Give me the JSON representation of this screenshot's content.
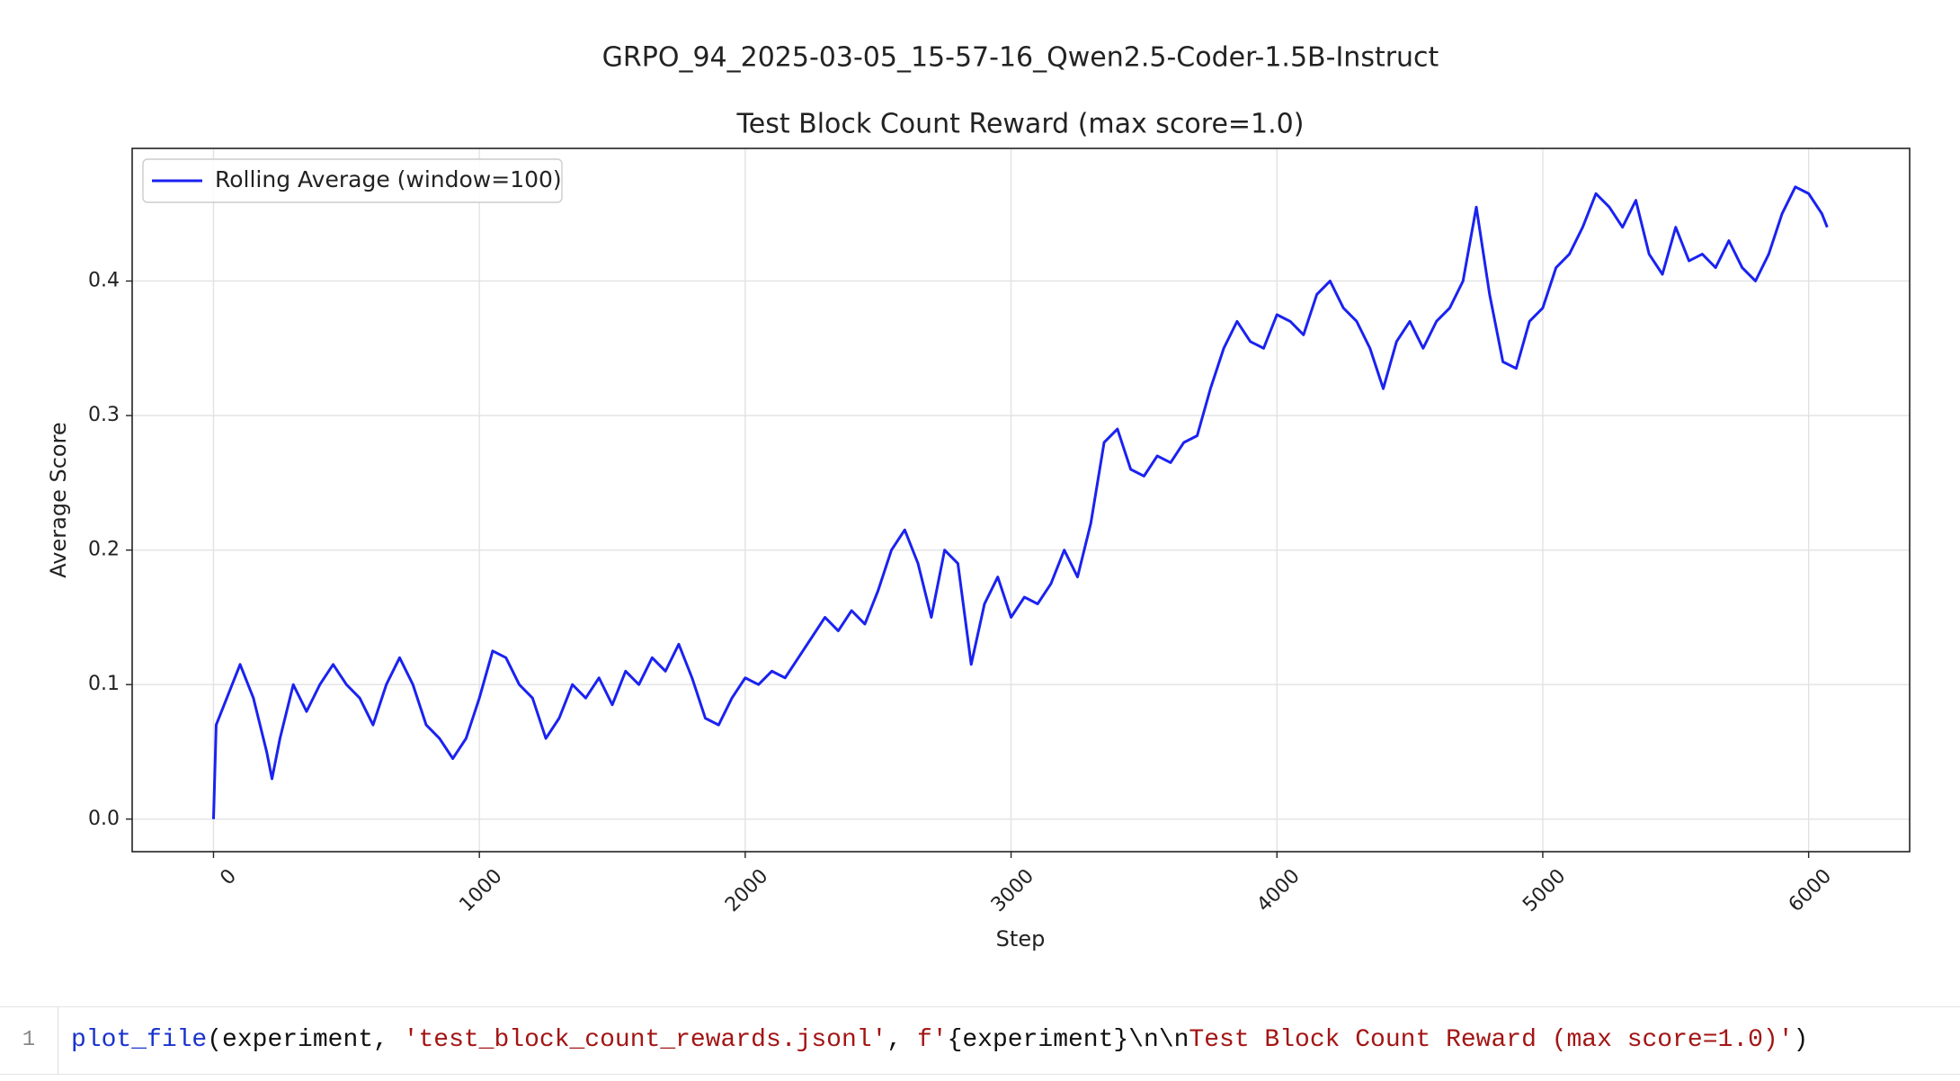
{
  "chart_data": {
    "type": "line",
    "title": "GRPO_94_2025-03-05_15-57-16_Qwen2.5-Coder-1.5B-Instruct",
    "subtitle": "Test Block Count Reward (max score=1.0)",
    "x_label": "Step",
    "y_label": "Average Score",
    "x": [
      0,
      10,
      50,
      100,
      150,
      200,
      220,
      250,
      300,
      350,
      400,
      450,
      500,
      550,
      600,
      650,
      700,
      750,
      800,
      850,
      900,
      950,
      1000,
      1050,
      1100,
      1150,
      1200,
      1250,
      1300,
      1350,
      1400,
      1450,
      1500,
      1550,
      1600,
      1650,
      1700,
      1750,
      1800,
      1850,
      1900,
      1950,
      2000,
      2050,
      2100,
      2150,
      2200,
      2250,
      2300,
      2350,
      2400,
      2450,
      2500,
      2550,
      2600,
      2650,
      2700,
      2750,
      2800,
      2850,
      2900,
      2950,
      3000,
      3050,
      3100,
      3150,
      3200,
      3250,
      3300,
      3350,
      3400,
      3450,
      3500,
      3550,
      3600,
      3650,
      3700,
      3750,
      3800,
      3850,
      3900,
      3950,
      4000,
      4050,
      4100,
      4150,
      4200,
      4250,
      4300,
      4350,
      4400,
      4450,
      4500,
      4550,
      4600,
      4650,
      4700,
      4750,
      4800,
      4850,
      4900,
      4950,
      5000,
      5050,
      5100,
      5150,
      5200,
      5250,
      5300,
      5350,
      5400,
      5450,
      5500,
      5550,
      5600,
      5650,
      5700,
      5750,
      5800,
      5850,
      5900,
      5950,
      6000,
      6050,
      6070
    ],
    "series": [
      {
        "name": "Rolling Average (window=100)",
        "color": "#1a22f0",
        "values": [
          0,
          0.07,
          0.09,
          0.115,
          0.09,
          0.05,
          0.03,
          0.06,
          0.1,
          0.08,
          0.1,
          0.115,
          0.1,
          0.09,
          0.07,
          0.1,
          0.12,
          0.1,
          0.07,
          0.06,
          0.045,
          0.06,
          0.09,
          0.125,
          0.12,
          0.1,
          0.09,
          0.06,
          0.075,
          0.1,
          0.09,
          0.105,
          0.085,
          0.11,
          0.1,
          0.12,
          0.11,
          0.13,
          0.105,
          0.075,
          0.07,
          0.09,
          0.105,
          0.1,
          0.11,
          0.105,
          0.12,
          0.135,
          0.15,
          0.14,
          0.155,
          0.145,
          0.17,
          0.2,
          0.215,
          0.19,
          0.15,
          0.2,
          0.19,
          0.115,
          0.16,
          0.18,
          0.15,
          0.165,
          0.16,
          0.175,
          0.2,
          0.18,
          0.22,
          0.28,
          0.29,
          0.26,
          0.255,
          0.27,
          0.265,
          0.28,
          0.285,
          0.32,
          0.35,
          0.37,
          0.355,
          0.35,
          0.375,
          0.37,
          0.36,
          0.39,
          0.4,
          0.38,
          0.37,
          0.35,
          0.32,
          0.355,
          0.37,
          0.35,
          0.37,
          0.38,
          0.4,
          0.455,
          0.39,
          0.34,
          0.335,
          0.37,
          0.38,
          0.41,
          0.42,
          0.44,
          0.465,
          0.455,
          0.44,
          0.46,
          0.42,
          0.405,
          0.44,
          0.415,
          0.42,
          0.41,
          0.43,
          0.41,
          0.4,
          0.42,
          0.45,
          0.47,
          0.465,
          0.45,
          0.44
        ]
      }
    ],
    "xlim": [
      -306,
      6380
    ],
    "xticks": [
      0,
      1000,
      2000,
      3000,
      4000,
      5000,
      6000
    ],
    "ylim": [
      -0.0242,
      0.4986
    ],
    "yticks": [
      {
        "value": 0,
        "label": "0.0"
      },
      0.1,
      0.2,
      0.3,
      0.4
    ],
    "grid": true,
    "legend": "upper left"
  },
  "code": {
    "line_number": "1",
    "tokens": [
      {
        "text": "plot_file",
        "color": "#1a33cc"
      },
      {
        "text": "(experiment, ",
        "color": "#111111"
      },
      {
        "text": "'test_block_count_rewards.jsonl'",
        "color": "#a31515"
      },
      {
        "text": ", ",
        "color": "#111111"
      },
      {
        "text": "f'",
        "color": "#a31515"
      },
      {
        "text": "{experiment}\\n\\n",
        "color": "#111111"
      },
      {
        "text": "Test Block Count Reward (max score=1.0)'",
        "color": "#a31515"
      },
      {
        "text": ")",
        "color": "#111111"
      }
    ]
  }
}
